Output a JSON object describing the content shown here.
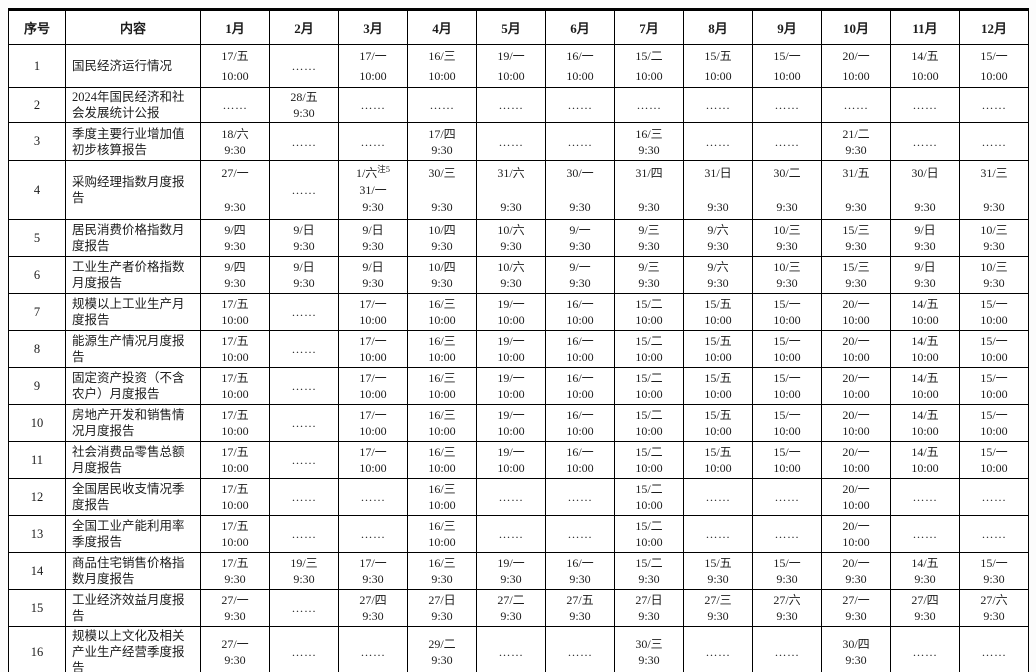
{
  "table": {
    "col_headers": [
      "序号",
      "内容",
      "1月",
      "2月",
      "3月",
      "4月",
      "5月",
      "6月",
      "7月",
      "8月",
      "9月",
      "10月",
      "11月",
      "12月"
    ],
    "dots_symbol": "……",
    "rows": [
      {
        "no": "1",
        "name": "国民经济运行情况",
        "months": [
          {
            "d": "17/五",
            "t": "10:00"
          },
          {
            "e": "……"
          },
          {
            "d": "17/一",
            "t": "10:00"
          },
          {
            "d": "16/三",
            "t": "10:00"
          },
          {
            "d": "19/一",
            "t": "10:00"
          },
          {
            "d": "16/一",
            "t": "10:00"
          },
          {
            "d": "15/二",
            "t": "10:00"
          },
          {
            "d": "15/五",
            "t": "10:00"
          },
          {
            "d": "15/一",
            "t": "10:00"
          },
          {
            "d": "20/一",
            "t": "10:00"
          },
          {
            "d": "14/五",
            "t": "10:00"
          },
          {
            "d": "15/一",
            "t": "10:00"
          }
        ]
      },
      {
        "no": "2",
        "name": "2024年国民经济和社会发展统计公报",
        "months": [
          {
            "e": "……"
          },
          {
            "d": "28/五",
            "t": "9:30"
          },
          {
            "e": "……"
          },
          {
            "e": "……"
          },
          {
            "e": "……"
          },
          {
            "e": "……"
          },
          {
            "e": "……"
          },
          {
            "e": "……"
          },
          {
            "e": "……"
          },
          {
            "e": "……"
          },
          {
            "e": "……"
          },
          {
            "e": "……"
          }
        ]
      },
      {
        "no": "3",
        "name": "季度主要行业增加值初步核算报告",
        "months": [
          {
            "d": "18/六",
            "t": "9:30"
          },
          {
            "e": "……"
          },
          {
            "e": "……"
          },
          {
            "d": "17/四",
            "t": "9:30"
          },
          {
            "e": "……"
          },
          {
            "e": "……"
          },
          {
            "d": "16/三",
            "t": "9:30"
          },
          {
            "e": "……"
          },
          {
            "e": "……"
          },
          {
            "d": "21/二",
            "t": "9:30"
          },
          {
            "e": "……"
          },
          {
            "e": "……"
          }
        ]
      },
      {
        "no": "4",
        "name": "采购经理指数月度报告",
        "months": [
          {
            "d": "27/一",
            "t": "9:30"
          },
          {
            "e": "……"
          },
          {
            "d": "1/六",
            "sup": "注5",
            "d2": "31/一",
            "t": "9:30"
          },
          {
            "d": "30/三",
            "t": "9:30"
          },
          {
            "d": "31/六",
            "t": "9:30"
          },
          {
            "d": "30/一",
            "t": "9:30"
          },
          {
            "d": "31/四",
            "t": "9:30"
          },
          {
            "d": "31/日",
            "t": "9:30"
          },
          {
            "d": "30/二",
            "t": "9:30"
          },
          {
            "d": "31/五",
            "t": "9:30"
          },
          {
            "d": "30/日",
            "t": "9:30"
          },
          {
            "d": "31/三",
            "t": "9:30"
          }
        ]
      },
      {
        "no": "5",
        "name": "居民消费价格指数月度报告",
        "months": [
          {
            "d": "9/四",
            "t": "9:30"
          },
          {
            "d": "9/日",
            "t": "9:30"
          },
          {
            "d": "9/日",
            "t": "9:30"
          },
          {
            "d": "10/四",
            "t": "9:30"
          },
          {
            "d": "10/六",
            "t": "9:30"
          },
          {
            "d": "9/一",
            "t": "9:30"
          },
          {
            "d": "9/三",
            "t": "9:30"
          },
          {
            "d": "9/六",
            "t": "9:30"
          },
          {
            "d": "10/三",
            "t": "9:30"
          },
          {
            "d": "15/三",
            "t": "9:30"
          },
          {
            "d": "9/日",
            "t": "9:30"
          },
          {
            "d": "10/三",
            "t": "9:30"
          }
        ]
      },
      {
        "no": "6",
        "name": "工业生产者价格指数月度报告",
        "months": [
          {
            "d": "9/四",
            "t": "9:30"
          },
          {
            "d": "9/日",
            "t": "9:30"
          },
          {
            "d": "9/日",
            "t": "9:30"
          },
          {
            "d": "10/四",
            "t": "9:30"
          },
          {
            "d": "10/六",
            "t": "9:30"
          },
          {
            "d": "9/一",
            "t": "9:30"
          },
          {
            "d": "9/三",
            "t": "9:30"
          },
          {
            "d": "9/六",
            "t": "9:30"
          },
          {
            "d": "10/三",
            "t": "9:30"
          },
          {
            "d": "15/三",
            "t": "9:30"
          },
          {
            "d": "9/日",
            "t": "9:30"
          },
          {
            "d": "10/三",
            "t": "9:30"
          }
        ]
      },
      {
        "no": "7",
        "name": "规模以上工业生产月度报告",
        "months": [
          {
            "d": "17/五",
            "t": "10:00"
          },
          {
            "e": "……"
          },
          {
            "d": "17/一",
            "t": "10:00"
          },
          {
            "d": "16/三",
            "t": "10:00"
          },
          {
            "d": "19/一",
            "t": "10:00"
          },
          {
            "d": "16/一",
            "t": "10:00"
          },
          {
            "d": "15/二",
            "t": "10:00"
          },
          {
            "d": "15/五",
            "t": "10:00"
          },
          {
            "d": "15/一",
            "t": "10:00"
          },
          {
            "d": "20/一",
            "t": "10:00"
          },
          {
            "d": "14/五",
            "t": "10:00"
          },
          {
            "d": "15/一",
            "t": "10:00"
          }
        ]
      },
      {
        "no": "8",
        "name": "能源生产情况月度报告",
        "months": [
          {
            "d": "17/五",
            "t": "10:00"
          },
          {
            "e": "……"
          },
          {
            "d": "17/一",
            "t": "10:00"
          },
          {
            "d": "16/三",
            "t": "10:00"
          },
          {
            "d": "19/一",
            "t": "10:00"
          },
          {
            "d": "16/一",
            "t": "10:00"
          },
          {
            "d": "15/二",
            "t": "10:00"
          },
          {
            "d": "15/五",
            "t": "10:00"
          },
          {
            "d": "15/一",
            "t": "10:00"
          },
          {
            "d": "20/一",
            "t": "10:00"
          },
          {
            "d": "14/五",
            "t": "10:00"
          },
          {
            "d": "15/一",
            "t": "10:00"
          }
        ]
      },
      {
        "no": "9",
        "name": "固定资产投资（不含农户）月度报告",
        "months": [
          {
            "d": "17/五",
            "t": "10:00"
          },
          {
            "e": "……"
          },
          {
            "d": "17/一",
            "t": "10:00"
          },
          {
            "d": "16/三",
            "t": "10:00"
          },
          {
            "d": "19/一",
            "t": "10:00"
          },
          {
            "d": "16/一",
            "t": "10:00"
          },
          {
            "d": "15/二",
            "t": "10:00"
          },
          {
            "d": "15/五",
            "t": "10:00"
          },
          {
            "d": "15/一",
            "t": "10:00"
          },
          {
            "d": "20/一",
            "t": "10:00"
          },
          {
            "d": "14/五",
            "t": "10:00"
          },
          {
            "d": "15/一",
            "t": "10:00"
          }
        ]
      },
      {
        "no": "10",
        "name": "房地产开发和销售情况月度报告",
        "months": [
          {
            "d": "17/五",
            "t": "10:00"
          },
          {
            "e": "……"
          },
          {
            "d": "17/一",
            "t": "10:00"
          },
          {
            "d": "16/三",
            "t": "10:00"
          },
          {
            "d": "19/一",
            "t": "10:00"
          },
          {
            "d": "16/一",
            "t": "10:00"
          },
          {
            "d": "15/二",
            "t": "10:00"
          },
          {
            "d": "15/五",
            "t": "10:00"
          },
          {
            "d": "15/一",
            "t": "10:00"
          },
          {
            "d": "20/一",
            "t": "10:00"
          },
          {
            "d": "14/五",
            "t": "10:00"
          },
          {
            "d": "15/一",
            "t": "10:00"
          }
        ]
      },
      {
        "no": "11",
        "name": "社会消费品零售总额月度报告",
        "months": [
          {
            "d": "17/五",
            "t": "10:00"
          },
          {
            "e": "……"
          },
          {
            "d": "17/一",
            "t": "10:00"
          },
          {
            "d": "16/三",
            "t": "10:00"
          },
          {
            "d": "19/一",
            "t": "10:00"
          },
          {
            "d": "16/一",
            "t": "10:00"
          },
          {
            "d": "15/二",
            "t": "10:00"
          },
          {
            "d": "15/五",
            "t": "10:00"
          },
          {
            "d": "15/一",
            "t": "10:00"
          },
          {
            "d": "20/一",
            "t": "10:00"
          },
          {
            "d": "14/五",
            "t": "10:00"
          },
          {
            "d": "15/一",
            "t": "10:00"
          }
        ]
      },
      {
        "no": "12",
        "name": "全国居民收支情况季度报告",
        "months": [
          {
            "d": "17/五",
            "t": "10:00"
          },
          {
            "e": "……"
          },
          {
            "e": "……"
          },
          {
            "d": "16/三",
            "t": "10:00"
          },
          {
            "e": "……"
          },
          {
            "e": "……"
          },
          {
            "d": "15/二",
            "t": "10:00"
          },
          {
            "e": "……"
          },
          {
            "e": "……"
          },
          {
            "d": "20/一",
            "t": "10:00"
          },
          {
            "e": "……"
          },
          {
            "e": "……"
          }
        ]
      },
      {
        "no": "13",
        "name": "全国工业产能利用率季度报告",
        "months": [
          {
            "d": "17/五",
            "t": "10:00"
          },
          {
            "e": "……"
          },
          {
            "e": "……"
          },
          {
            "d": "16/三",
            "t": "10:00"
          },
          {
            "e": "……"
          },
          {
            "e": "……"
          },
          {
            "d": "15/二",
            "t": "10:00"
          },
          {
            "e": "……"
          },
          {
            "e": "……"
          },
          {
            "d": "20/一",
            "t": "10:00"
          },
          {
            "e": "……"
          },
          {
            "e": "……"
          }
        ]
      },
      {
        "no": "14",
        "name": "商品住宅销售价格指数月度报告",
        "months": [
          {
            "d": "17/五",
            "t": "9:30"
          },
          {
            "d": "19/三",
            "t": "9:30"
          },
          {
            "d": "17/一",
            "t": "9:30"
          },
          {
            "d": "16/三",
            "t": "9:30"
          },
          {
            "d": "19/一",
            "t": "9:30"
          },
          {
            "d": "16/一",
            "t": "9:30"
          },
          {
            "d": "15/二",
            "t": "9:30"
          },
          {
            "d": "15/五",
            "t": "9:30"
          },
          {
            "d": "15/一",
            "t": "9:30"
          },
          {
            "d": "20/一",
            "t": "9:30"
          },
          {
            "d": "14/五",
            "t": "9:30"
          },
          {
            "d": "15/一",
            "t": "9:30"
          }
        ]
      },
      {
        "no": "15",
        "name": "工业经济效益月度报告",
        "months": [
          {
            "d": "27/一",
            "t": "9:30"
          },
          {
            "e": "……"
          },
          {
            "d": "27/四",
            "t": "9:30"
          },
          {
            "d": "27/日",
            "t": "9:30"
          },
          {
            "d": "27/二",
            "t": "9:30"
          },
          {
            "d": "27/五",
            "t": "9:30"
          },
          {
            "d": "27/日",
            "t": "9:30"
          },
          {
            "d": "27/三",
            "t": "9:30"
          },
          {
            "d": "27/六",
            "t": "9:30"
          },
          {
            "d": "27/一",
            "t": "9:30"
          },
          {
            "d": "27/四",
            "t": "9:30"
          },
          {
            "d": "27/六",
            "t": "9:30"
          }
        ]
      },
      {
        "no": "16",
        "name": "规模以上文化及相关产业生产经营季度报告",
        "months": [
          {
            "d": "27/一",
            "t": "9:30"
          },
          {
            "e": "……"
          },
          {
            "e": "……"
          },
          {
            "d": "29/二",
            "t": "9:30"
          },
          {
            "e": "……"
          },
          {
            "e": "……"
          },
          {
            "d": "30/三",
            "t": "9:30"
          },
          {
            "e": "……"
          },
          {
            "e": "……"
          },
          {
            "d": "30/四",
            "t": "9:30"
          },
          {
            "e": "……"
          },
          {
            "e": "……"
          }
        ]
      }
    ]
  },
  "colors": {
    "border": "#000000",
    "text": "#1c1c1c",
    "background": "#ffffff"
  }
}
